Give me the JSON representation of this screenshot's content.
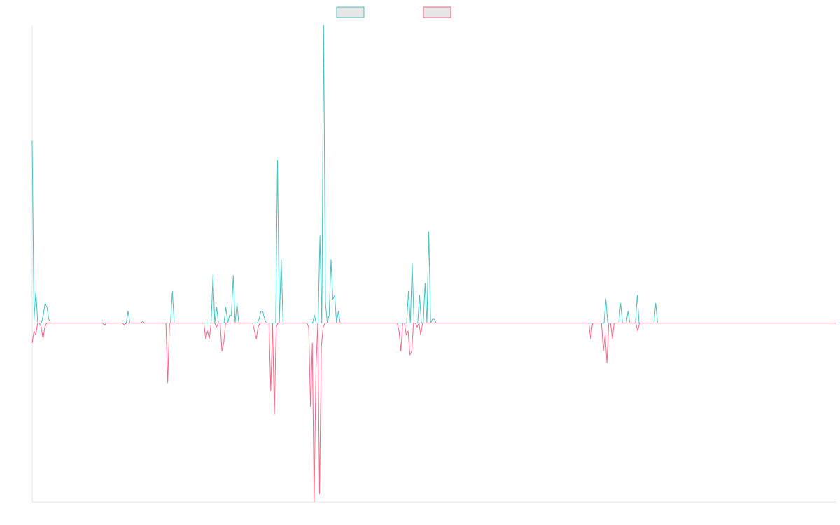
{
  "chart_data": {
    "type": "line",
    "title": "",
    "xlabel": "",
    "ylabel": "",
    "legend_position": "top-center",
    "grid": false,
    "ylim": [
      -0.45,
      0.75
    ],
    "series": [
      {
        "color": "#4bc0c0",
        "values": [
          0.46,
          0.01,
          0.08,
          0,
          0,
          0,
          0.02,
          0.05,
          0.04,
          0.01,
          0,
          0,
          0,
          0,
          0,
          0,
          0,
          0,
          0,
          0,
          0,
          0,
          0,
          0,
          0,
          0,
          0,
          0,
          0,
          0,
          0,
          0,
          0,
          0,
          0,
          0,
          0,
          0,
          0,
          0,
          0,
          0,
          0,
          0,
          0,
          0,
          0,
          0,
          0,
          0,
          0,
          0,
          0.03,
          0,
          0,
          0,
          0,
          0,
          0,
          0,
          0.005,
          0,
          0,
          0,
          0,
          0,
          0,
          0,
          0,
          0,
          0,
          0,
          0,
          0,
          0,
          0,
          0.08,
          0,
          0,
          0,
          0,
          0,
          0,
          0,
          0,
          0,
          0,
          0,
          0,
          0,
          0,
          0,
          0,
          0,
          0,
          0,
          0,
          0,
          0.12,
          0,
          0.04,
          0,
          0,
          0,
          0,
          0.04,
          0,
          0.02,
          0.02,
          0.12,
          0,
          0.05,
          0,
          0,
          0,
          0,
          0,
          0,
          0,
          0,
          0,
          0,
          0,
          0.01,
          0.03,
          0.03,
          0.01,
          0,
          0,
          0,
          0,
          0,
          0,
          0.41,
          0,
          0.16,
          0,
          0,
          0,
          0,
          0,
          0,
          0,
          0,
          0,
          0,
          0,
          0,
          0,
          0,
          0,
          0,
          0,
          0.02,
          0,
          0,
          0.22,
          0,
          0.75,
          0.05,
          0,
          0.02,
          0.16,
          0.06,
          0.07,
          0,
          0.03,
          0,
          0,
          0,
          0,
          0,
          0,
          0,
          0,
          0,
          0,
          0,
          0,
          0,
          0,
          0,
          0,
          0,
          0,
          0,
          0,
          0,
          0,
          0,
          0,
          0,
          0,
          0,
          0,
          0,
          0,
          0,
          0,
          0,
          0,
          0,
          0,
          0,
          0.08,
          0,
          0.15,
          0,
          0,
          0,
          0.07,
          0,
          0,
          0.1,
          0,
          0.23,
          0,
          0.01,
          0.01,
          0,
          0,
          0,
          0,
          0,
          0,
          0,
          0,
          0,
          0,
          0,
          0,
          0,
          0,
          0,
          0,
          0,
          0,
          0,
          0,
          0,
          0,
          0,
          0,
          0,
          0,
          0,
          0,
          0,
          0,
          0,
          0,
          0,
          0,
          0,
          0,
          0,
          0,
          0,
          0,
          0,
          0,
          0,
          0,
          0,
          0,
          0,
          0,
          0,
          0,
          0,
          0,
          0,
          0,
          0,
          0,
          0,
          0,
          0,
          0,
          0,
          0,
          0,
          0,
          0,
          0,
          0,
          0,
          0,
          0,
          0,
          0,
          0,
          0,
          0,
          0,
          0,
          0,
          0,
          0,
          0,
          0,
          0,
          0,
          0,
          0,
          0,
          0,
          0,
          0,
          0,
          0,
          0.06,
          0,
          0,
          0,
          0,
          0,
          0,
          0,
          0.05,
          0,
          0,
          0,
          0.03,
          0,
          0,
          0,
          0,
          0.07,
          0,
          0,
          0,
          0,
          0,
          0,
          0,
          0,
          0,
          0.05,
          0,
          0,
          0,
          0,
          0,
          0,
          0,
          0,
          0,
          0,
          0,
          0,
          0,
          0,
          0,
          0,
          0,
          0,
          0,
          0,
          0,
          0,
          0,
          0,
          0,
          0,
          0,
          0,
          0,
          0,
          0,
          0,
          0,
          0,
          0,
          0,
          0,
          0,
          0,
          0,
          0,
          0,
          0,
          0,
          0,
          0,
          0,
          0,
          0,
          0,
          0,
          0,
          0,
          0,
          0,
          0,
          0,
          0,
          0,
          0,
          0,
          0,
          0,
          0,
          0,
          0,
          0,
          0,
          0,
          0,
          0,
          0,
          0,
          0,
          0,
          0,
          0,
          0,
          0,
          0,
          0,
          0,
          0,
          0,
          0,
          0,
          0,
          0,
          0,
          0,
          0,
          0,
          0,
          0,
          0,
          0,
          0,
          0
        ]
      },
      {
        "color": "#ff6384",
        "values": [
          -0.05,
          -0.02,
          -0.03,
          0,
          0,
          -0.01,
          -0.04,
          -0.01,
          0,
          0,
          0,
          0,
          0,
          0,
          0,
          0,
          0,
          0,
          0,
          0,
          0,
          0,
          0,
          0,
          0,
          0,
          0,
          0,
          0,
          0,
          0,
          0,
          0,
          0,
          0,
          0,
          0,
          0,
          0,
          0,
          -0.005,
          0,
          0,
          0,
          0,
          0,
          0,
          0,
          0,
          0,
          0,
          -0.005,
          0,
          0,
          0,
          0,
          0,
          0,
          0,
          0,
          0,
          0,
          0,
          0,
          0,
          0,
          0,
          0,
          0,
          0,
          0,
          0,
          0,
          0,
          0,
          -0.15,
          0,
          0,
          0,
          0,
          0,
          0,
          0,
          0,
          0,
          0,
          0,
          0,
          0,
          0,
          0,
          0,
          0,
          0,
          0,
          0,
          -0.04,
          -0.02,
          -0.04,
          0,
          0,
          0,
          -0.01,
          0,
          0,
          -0.07,
          -0.05,
          0,
          0,
          0,
          0,
          0,
          0,
          0,
          0,
          0,
          0,
          0,
          0,
          0,
          0,
          0,
          0,
          -0.02,
          -0.04,
          -0.01,
          0,
          0,
          0,
          0,
          0,
          0,
          -0.17,
          0,
          -0.23,
          -0.01,
          0,
          0,
          0,
          0,
          0,
          0,
          0,
          0,
          0,
          0,
          0,
          0,
          0,
          0,
          0,
          0,
          0,
          -0.01,
          -0.21,
          -0.05,
          -0.45,
          -0.12,
          0,
          -0.43,
          -0.06,
          -0.01,
          0,
          0,
          0,
          0,
          0,
          0,
          0,
          0,
          0,
          0,
          0,
          0,
          0,
          0,
          0,
          0,
          0,
          0,
          0,
          0,
          0,
          0,
          0,
          0,
          0,
          0,
          0,
          0,
          0,
          0,
          0,
          0,
          0,
          0,
          0,
          0,
          0,
          0,
          0,
          0,
          0,
          -0.02,
          -0.07,
          0,
          0,
          -0.03,
          -0.02,
          -0.08,
          -0.07,
          0,
          0,
          -0.01,
          0,
          -0.03,
          0,
          0,
          0,
          0,
          0,
          0,
          0,
          0,
          0,
          0,
          0,
          0,
          0,
          0,
          0,
          0,
          0,
          0,
          0,
          0,
          0,
          0,
          0,
          0,
          0,
          0,
          0,
          0,
          0,
          0,
          0,
          0,
          0,
          0,
          0,
          0,
          0,
          0,
          0,
          0,
          0,
          0,
          0,
          0,
          0,
          0,
          0,
          0,
          0,
          0,
          0,
          0,
          0,
          0,
          0,
          0,
          0,
          0,
          0,
          0,
          0,
          0,
          0,
          0,
          0,
          0,
          0,
          0,
          0,
          0,
          0,
          0,
          0,
          0,
          0,
          0,
          0,
          0,
          0,
          0,
          0,
          0,
          0,
          0,
          0,
          0,
          0,
          0,
          0,
          0,
          0,
          0,
          0,
          -0.04,
          0,
          0,
          0,
          0,
          0,
          0,
          -0.07,
          -0.03,
          -0.1,
          0,
          0,
          -0.04,
          0,
          0,
          0,
          0,
          0,
          0,
          0,
          0,
          0,
          0,
          0,
          0,
          0,
          -0.02,
          0,
          0,
          0,
          0,
          0,
          0,
          0,
          0,
          0,
          0,
          0,
          0,
          0,
          0,
          0,
          0,
          0,
          0,
          0,
          0,
          0,
          0,
          0,
          0,
          0,
          0,
          0,
          0,
          0,
          0,
          0,
          0,
          0,
          0,
          0,
          0,
          0,
          0,
          0,
          0,
          0,
          0,
          0,
          0,
          0,
          0,
          0,
          0,
          0,
          0,
          0,
          0,
          0,
          0,
          0,
          0,
          0,
          0,
          0,
          0,
          0,
          0,
          0,
          0,
          0,
          0,
          0,
          0,
          0,
          0,
          0,
          0,
          0,
          0,
          0,
          0,
          0,
          0,
          0,
          0,
          0,
          0,
          0,
          0,
          0,
          0,
          0,
          0,
          0,
          0,
          0,
          0,
          0,
          0,
          0,
          0,
          0,
          0,
          0,
          0,
          0,
          0,
          0,
          0,
          0,
          0,
          0,
          0,
          0,
          0
        ]
      }
    ]
  }
}
